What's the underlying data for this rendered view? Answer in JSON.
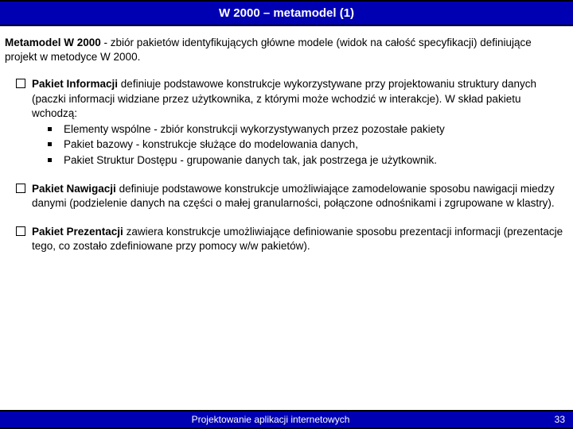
{
  "title": "W 2000 – metamodel (1)",
  "intro": {
    "bold": "Metamodel W 2000",
    "rest": " - zbiór pakietów identyfikujących główne modele (widok na całość specyfikacji) definiujące projekt w metodyce W 2000."
  },
  "sections": [
    {
      "heading": "Pakiet Informacji",
      "text": " definiuje podstawowe konstrukcje wykorzystywane przy projektowaniu struktury danych (paczki informacji widziane przez użytkownika, z którymi może wchodzić w interakcje). W skład pakietu wchodzą:",
      "items": [
        "Elementy wspólne - zbiór konstrukcji wykorzystywanych przez pozostałe pakiety",
        "Pakiet bazowy - konstrukcje służące do modelowania danych,",
        "Pakiet Struktur Dostępu - grupowanie danych tak, jak postrzega je użytkownik."
      ]
    },
    {
      "heading": "Pakiet Nawigacji",
      "text": " definiuje podstawowe konstrukcje umożliwiające zamodelowanie sposobu nawigacji miedzy danymi (podzielenie danych na części o małej granularności, połączone odnośnikami i zgrupowane w klastry)."
    },
    {
      "heading": "Pakiet Prezentacji",
      "text": " zawiera konstrukcje umożliwiające definiowanie sposobu prezentacji informacji (prezentacje tego, co zostało zdefiniowane przy pomocy w/w pakietów)."
    }
  ],
  "footer": {
    "text": "Projektowanie aplikacji internetowych",
    "page": "33"
  }
}
